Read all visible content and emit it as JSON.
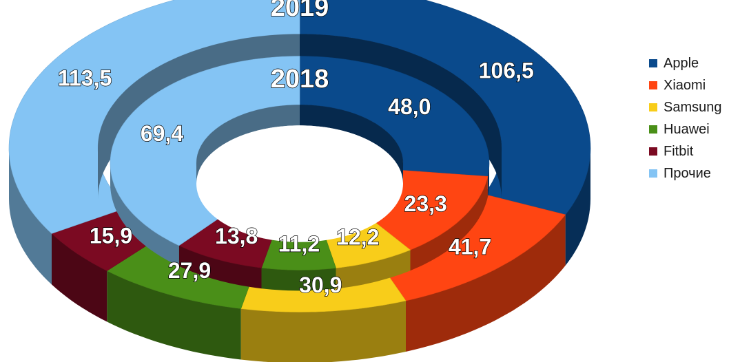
{
  "chart_data": {
    "type": "donut",
    "categories": [
      "Apple",
      "Xiaomi",
      "Samsung",
      "Huawei",
      "Fitbit",
      "Прочие"
    ],
    "colors": [
      "#0a4a8c",
      "#ff4512",
      "#f8cd1a",
      "#4a8f18",
      "#7b0a22",
      "#84c4f4"
    ],
    "series": [
      {
        "name": "2019",
        "values": [
          106.5,
          41.7,
          30.9,
          27.9,
          15.9,
          113.5
        ],
        "value_labels": [
          "106,5",
          "41,7",
          "30,9",
          "27,9",
          "15,9",
          "113,5"
        ]
      },
      {
        "name": "2018",
        "values": [
          48.0,
          23.3,
          12.2,
          11.2,
          13.8,
          69.4
        ],
        "value_labels": [
          "48,0",
          "23,3",
          "12,2",
          "11,2",
          "13,8",
          "69,4"
        ]
      }
    ],
    "legend": {
      "position": "right"
    }
  }
}
